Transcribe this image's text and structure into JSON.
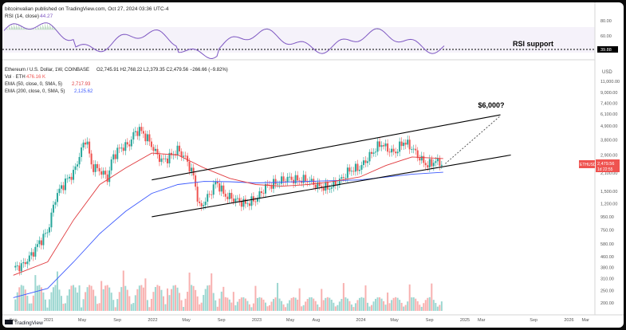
{
  "header": {
    "publisher": "bitcoinvalian published on TradingView.com, Oct 27, 2024 03:36 UTC-4"
  },
  "rsi_panel": {
    "label": "RSI (14, close)",
    "value": "44.27",
    "levels": [
      "80.00",
      "60.00",
      "40.00"
    ],
    "level_values": [
      80,
      60,
      40
    ],
    "badge": "39.88",
    "support_label": "RSI support",
    "support_level": 37.5
  },
  "main_panel": {
    "title": "Ethereum / U.S. Dollar, 1W, COINBASE",
    "ohlc": "O2,745.91  H2,768.22  L2,379.35  C2,479.56  −266.66 (−9.82%)",
    "vol_label": "Vol · ETH",
    "vol_value": "476.16 K",
    "ema50_label": "EMA (50, close, 0, SMA, 5)",
    "ema50_value": "2,717.93",
    "ema200_label": "EMA (200, close, 0, SMA, 5)",
    "ema200_value": "2,125.62",
    "currency": "USD",
    "price_badge": "ETHUSD",
    "price_value": "2,479.56",
    "countdown": "1d 22:55",
    "target_label": "$6,000?",
    "watermark": "TradingView"
  },
  "colors": {
    "up": "#26a69a",
    "down": "#ef5350",
    "ema50": "#e03a3e",
    "ema200": "#3d5afe",
    "rsi": "#7e57c2",
    "channel": "#000000"
  },
  "chart_data": {
    "type": "candlestick",
    "title": "Ethereum / U.S. Dollar, 1W, COINBASE",
    "y_axis_scale": "log",
    "y_ticks": [
      "11,000.00",
      "9,000.00",
      "7,400.00",
      "6,100.00",
      "4,900.00",
      "3,800.00",
      "2,900.00",
      "2,100.00",
      "1,500.00",
      "1,200.00",
      "950.00",
      "750.00",
      "580.00",
      "460.00",
      "380.00",
      "310.00",
      "250.00",
      "200.00"
    ],
    "y_tick_values": [
      11000,
      9000,
      7400,
      6100,
      4900,
      3800,
      2900,
      2100,
      1500,
      1200,
      950,
      750,
      580,
      460,
      380,
      310,
      250,
      200
    ],
    "x_ticks": [
      "Sep",
      "2021",
      "May",
      "Sep",
      "2022",
      "May",
      "Sep",
      "2023",
      "May",
      "Aug",
      "2024",
      "May",
      "Sep",
      "2025",
      "Mar",
      "Sep",
      "2026",
      "Mar"
    ],
    "x_tick_years": [
      2020.67,
      2021.0,
      2021.33,
      2021.67,
      2022.0,
      2022.33,
      2022.67,
      2023.0,
      2023.33,
      2023.58,
      2024.0,
      2024.33,
      2024.67,
      2025.0,
      2025.17,
      2025.67,
      2026.0,
      2026.17
    ],
    "price_path": [
      [
        2020.67,
        380
      ],
      [
        2020.75,
        390
      ],
      [
        2020.83,
        460
      ],
      [
        2020.92,
        600
      ],
      [
        2021.0,
        730
      ],
      [
        2021.08,
        1400
      ],
      [
        2021.17,
        1800
      ],
      [
        2021.25,
        2100
      ],
      [
        2021.33,
        3300
      ],
      [
        2021.37,
        4000
      ],
      [
        2021.42,
        2400
      ],
      [
        2021.5,
        2200
      ],
      [
        2021.58,
        1900
      ],
      [
        2021.62,
        2800
      ],
      [
        2021.7,
        3300
      ],
      [
        2021.78,
        3500
      ],
      [
        2021.83,
        4300
      ],
      [
        2021.88,
        4600
      ],
      [
        2021.96,
        3900
      ],
      [
        2022.04,
        3000
      ],
      [
        2022.1,
        2600
      ],
      [
        2022.17,
        2800
      ],
      [
        2022.25,
        3200
      ],
      [
        2022.33,
        2700
      ],
      [
        2022.4,
        2000
      ],
      [
        2022.46,
        1100
      ],
      [
        2022.55,
        1400
      ],
      [
        2022.62,
        1800
      ],
      [
        2022.7,
        1400
      ],
      [
        2022.8,
        1300
      ],
      [
        2022.9,
        1200
      ],
      [
        2023.0,
        1300
      ],
      [
        2023.1,
        1650
      ],
      [
        2023.2,
        1750
      ],
      [
        2023.3,
        1900
      ],
      [
        2023.4,
        1850
      ],
      [
        2023.5,
        1850
      ],
      [
        2023.6,
        1650
      ],
      [
        2023.7,
        1600
      ],
      [
        2023.8,
        1800
      ],
      [
        2023.9,
        2200
      ],
      [
        2024.0,
        2300
      ],
      [
        2024.1,
        2900
      ],
      [
        2024.2,
        3600
      ],
      [
        2024.25,
        3300
      ],
      [
        2024.33,
        3000
      ],
      [
        2024.42,
        3700
      ],
      [
        2024.5,
        3300
      ],
      [
        2024.58,
        2700
      ],
      [
        2024.65,
        2400
      ],
      [
        2024.72,
        2600
      ],
      [
        2024.8,
        2480
      ]
    ],
    "ema50_path": [
      [
        2020.67,
        330
      ],
      [
        2021.0,
        420
      ],
      [
        2021.25,
        900
      ],
      [
        2021.5,
        1700
      ],
      [
        2021.75,
        2300
      ],
      [
        2022.0,
        3000
      ],
      [
        2022.25,
        2900
      ],
      [
        2022.5,
        2300
      ],
      [
        2022.75,
        1900
      ],
      [
        2023.0,
        1700
      ],
      [
        2023.25,
        1650
      ],
      [
        2023.5,
        1700
      ],
      [
        2023.75,
        1800
      ],
      [
        2024.0,
        1950
      ],
      [
        2024.25,
        2400
      ],
      [
        2024.5,
        2800
      ],
      [
        2024.8,
        2720
      ]
    ],
    "ema200_path": [
      [
        2020.67,
        220
      ],
      [
        2021.0,
        260
      ],
      [
        2021.25,
        420
      ],
      [
        2021.5,
        700
      ],
      [
        2021.75,
        1050
      ],
      [
        2022.0,
        1450
      ],
      [
        2022.25,
        1700
      ],
      [
        2022.5,
        1800
      ],
      [
        2022.75,
        1790
      ],
      [
        2023.0,
        1750
      ],
      [
        2023.5,
        1800
      ],
      [
        2024.0,
        1850
      ],
      [
        2024.5,
        2050
      ],
      [
        2024.8,
        2125
      ]
    ],
    "channel_lines": [
      {
        "from": [
          2022.0,
          1850
        ],
        "to": [
          2025.35,
          6000
        ]
      },
      {
        "from": [
          2022.0,
          950
        ],
        "to": [
          2025.45,
          2900
        ]
      }
    ],
    "projection": {
      "from": [
        2024.82,
        2480
      ],
      "to": [
        2025.35,
        5900
      ],
      "label": "$6,000?"
    },
    "volume_scale": [
      0,
      1
    ]
  }
}
